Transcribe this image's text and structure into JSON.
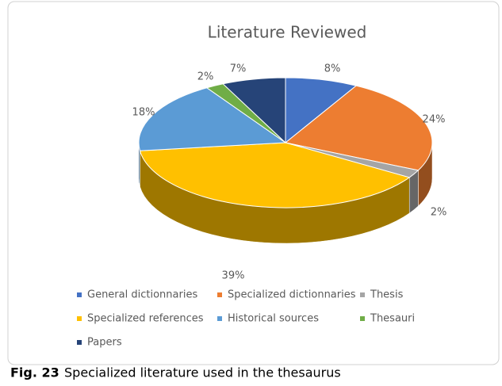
{
  "chart_data": {
    "type": "pie",
    "title": "Literature Reviewed",
    "categories": [
      "General dictionnaries",
      "Specialized dictionnaries",
      "Thesis",
      "Specialized references",
      "Historical sources",
      "Thesauri",
      "Papers"
    ],
    "values": [
      8,
      24,
      2,
      39,
      18,
      2,
      7
    ],
    "value_labels": [
      "8%",
      "24%",
      "2%",
      "39%",
      "18%",
      "2%",
      "7%"
    ],
    "colors": [
      "#4472c4",
      "#ed7d31",
      "#a5a5a5",
      "#ffc000",
      "#5b9bd5",
      "#70ad47",
      "#264478"
    ]
  },
  "caption": {
    "label": "Fig. 23",
    "text": "Specialized literature used in the thesaurus"
  }
}
